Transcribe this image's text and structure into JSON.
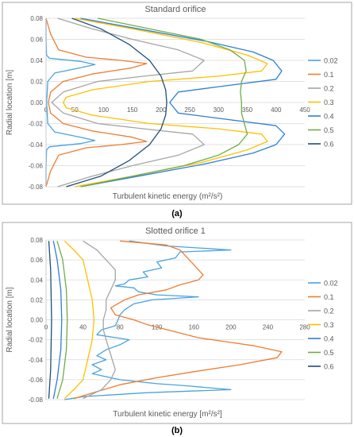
{
  "figure": {
    "panel_a_caption": "(a)",
    "panel_b_caption": "(b)"
  },
  "colors": {
    "0.02": "#4aa3df",
    "0.1": "#ed7d31",
    "0.2": "#a5a5a5",
    "0.3": "#ffc000",
    "0.4": "#2f7fd6",
    "0.5": "#70ad47",
    "0.6": "#1f4e79",
    "axis_text": "#595959",
    "grid": "#d9d9d9",
    "frame": "#a6a6a6"
  },
  "chart_data": [
    {
      "type": "line",
      "title": "Standard orifice",
      "xlabel": "Turbulent kinetic energy (m²/s²)",
      "ylabel": "Radial location [m]",
      "xlim": [
        0,
        450
      ],
      "ylim": [
        -0.08,
        0.08
      ],
      "xticks": [
        "0",
        "50",
        "100",
        "150",
        "200",
        "250",
        "300",
        "350",
        "400",
        "450"
      ],
      "yticks": [
        "0.08",
        "0.06",
        "0.04",
        "0.02",
        "0.00",
        "-0.02",
        "-0.04",
        "-0.06",
        "-0.08"
      ],
      "grid": "horizontal",
      "legend": "right",
      "series": [
        {
          "name": "0.02",
          "points": [
            [
              0,
              0.08
            ],
            [
              0,
              0.06
            ],
            [
              1,
              0.045
            ],
            [
              6,
              0.042
            ],
            [
              25,
              0.041
            ],
            [
              60,
              0.039
            ],
            [
              85,
              0.036
            ],
            [
              60,
              0.033
            ],
            [
              15,
              0.028
            ],
            [
              3,
              0.02
            ],
            [
              1,
              0.0
            ],
            [
              3,
              -0.02
            ],
            [
              15,
              -0.028
            ],
            [
              60,
              -0.033
            ],
            [
              85,
              -0.036
            ],
            [
              60,
              -0.039
            ],
            [
              25,
              -0.041
            ],
            [
              6,
              -0.042
            ],
            [
              1,
              -0.045
            ],
            [
              0,
              -0.06
            ],
            [
              0,
              -0.08
            ]
          ]
        },
        {
          "name": "0.1",
          "points": [
            [
              0,
              0.08
            ],
            [
              8,
              0.065
            ],
            [
              22,
              0.05
            ],
            [
              70,
              0.043
            ],
            [
              130,
              0.04
            ],
            [
              175,
              0.037
            ],
            [
              150,
              0.033
            ],
            [
              80,
              0.027
            ],
            [
              30,
              0.02
            ],
            [
              8,
              0.01
            ],
            [
              4,
              0.0
            ],
            [
              8,
              -0.01
            ],
            [
              30,
              -0.02
            ],
            [
              80,
              -0.027
            ],
            [
              150,
              -0.033
            ],
            [
              175,
              -0.037
            ],
            [
              130,
              -0.04
            ],
            [
              70,
              -0.043
            ],
            [
              22,
              -0.05
            ],
            [
              8,
              -0.065
            ],
            [
              0,
              -0.08
            ]
          ]
        },
        {
          "name": "0.2",
          "points": [
            [
              20,
              0.08
            ],
            [
              80,
              0.07
            ],
            [
              150,
              0.06
            ],
            [
              230,
              0.05
            ],
            [
              275,
              0.04
            ],
            [
              255,
              0.03
            ],
            [
              170,
              0.025
            ],
            [
              90,
              0.02
            ],
            [
              30,
              0.01
            ],
            [
              10,
              0.0
            ],
            [
              30,
              -0.01
            ],
            [
              90,
              -0.02
            ],
            [
              170,
              -0.025
            ],
            [
              255,
              -0.03
            ],
            [
              275,
              -0.04
            ],
            [
              230,
              -0.05
            ],
            [
              150,
              -0.06
            ],
            [
              80,
              -0.07
            ],
            [
              20,
              -0.08
            ]
          ]
        },
        {
          "name": "0.3",
          "points": [
            [
              50,
              0.08
            ],
            [
              150,
              0.07
            ],
            [
              270,
              0.057
            ],
            [
              350,
              0.045
            ],
            [
              385,
              0.037
            ],
            [
              375,
              0.03
            ],
            [
              300,
              0.025
            ],
            [
              180,
              0.02
            ],
            [
              80,
              0.012
            ],
            [
              35,
              0.005
            ],
            [
              30,
              0.0
            ],
            [
              35,
              -0.005
            ],
            [
              80,
              -0.012
            ],
            [
              180,
              -0.02
            ],
            [
              300,
              -0.025
            ],
            [
              375,
              -0.03
            ],
            [
              385,
              -0.037
            ],
            [
              350,
              -0.045
            ],
            [
              270,
              -0.057
            ],
            [
              150,
              -0.07
            ],
            [
              50,
              -0.08
            ]
          ]
        },
        {
          "name": "0.4",
          "points": [
            [
              60,
              0.08
            ],
            [
              160,
              0.07
            ],
            [
              280,
              0.058
            ],
            [
              360,
              0.048
            ],
            [
              395,
              0.04
            ],
            [
              410,
              0.03
            ],
            [
              400,
              0.022
            ],
            [
              300,
              0.015
            ],
            [
              230,
              0.01
            ],
            [
              215,
              0.0
            ],
            [
              230,
              -0.01
            ],
            [
              300,
              -0.015
            ],
            [
              400,
              -0.022
            ],
            [
              415,
              -0.03
            ],
            [
              400,
              -0.04
            ],
            [
              360,
              -0.048
            ],
            [
              280,
              -0.058
            ],
            [
              160,
              -0.07
            ],
            [
              60,
              -0.08
            ]
          ]
        },
        {
          "name": "0.5",
          "points": [
            [
              90,
              0.08
            ],
            [
              180,
              0.07
            ],
            [
              270,
              0.06
            ],
            [
              320,
              0.05
            ],
            [
              345,
              0.04
            ],
            [
              348,
              0.03
            ],
            [
              340,
              0.02
            ],
            [
              338,
              0.01
            ],
            [
              340,
              0.0
            ],
            [
              340,
              -0.01
            ],
            [
              345,
              -0.02
            ],
            [
              350,
              -0.03
            ],
            [
              335,
              -0.04
            ],
            [
              300,
              -0.05
            ],
            [
              240,
              -0.06
            ],
            [
              150,
              -0.07
            ],
            [
              60,
              -0.08
            ]
          ]
        },
        {
          "name": "0.6",
          "points": [
            [
              45,
              0.08
            ],
            [
              95,
              0.07
            ],
            [
              145,
              0.055
            ],
            [
              180,
              0.04
            ],
            [
              200,
              0.025
            ],
            [
              208,
              0.012
            ],
            [
              210,
              0.0
            ],
            [
              208,
              -0.012
            ],
            [
              200,
              -0.025
            ],
            [
              180,
              -0.04
            ],
            [
              145,
              -0.055
            ],
            [
              95,
              -0.07
            ],
            [
              35,
              -0.08
            ]
          ]
        }
      ]
    },
    {
      "type": "line",
      "title": "Slotted orifice 1",
      "xlabel": "Turbulent kinetic energy [m²/s²]",
      "ylabel": "Radial location [m]",
      "xlim": [
        0,
        280
      ],
      "ylim": [
        -0.08,
        0.08
      ],
      "xticks": [
        "0",
        "40",
        "80",
        "120",
        "160",
        "200",
        "240",
        "280"
      ],
      "yticks": [
        "0.08",
        "0.06",
        "0.04",
        "0.02",
        "0.00",
        "-0.02",
        "-0.04",
        "-0.06",
        "-0.08"
      ],
      "grid": "horizontal",
      "legend": "right",
      "series": [
        {
          "name": "0.02",
          "points": [
            [
              90,
              0.079
            ],
            [
              130,
              0.074
            ],
            [
              200,
              0.07
            ],
            [
              145,
              0.068
            ],
            [
              140,
              0.062
            ],
            [
              120,
              0.058
            ],
            [
              125,
              0.052
            ],
            [
              105,
              0.048
            ],
            [
              110,
              0.043
            ],
            [
              90,
              0.04
            ],
            [
              85,
              0.036
            ],
            [
              75,
              0.034
            ],
            [
              95,
              0.032
            ],
            [
              100,
              0.028
            ],
            [
              120,
              0.025
            ],
            [
              165,
              0.023
            ],
            [
              115,
              0.02
            ],
            [
              95,
              0.016
            ],
            [
              85,
              0.01
            ],
            [
              80,
              0.005
            ],
            [
              78,
              0.0
            ],
            [
              75,
              -0.006
            ],
            [
              60,
              -0.01
            ],
            [
              55,
              -0.015
            ],
            [
              90,
              -0.02
            ],
            [
              80,
              -0.025
            ],
            [
              65,
              -0.03
            ],
            [
              55,
              -0.036
            ],
            [
              65,
              -0.04
            ],
            [
              50,
              -0.045
            ],
            [
              60,
              -0.05
            ],
            [
              50,
              -0.054
            ],
            [
              80,
              -0.06
            ],
            [
              120,
              -0.064
            ],
            [
              150,
              -0.066
            ],
            [
              200,
              -0.07
            ],
            [
              110,
              -0.073
            ],
            [
              40,
              -0.077
            ],
            [
              20,
              -0.08
            ]
          ]
        },
        {
          "name": "0.1",
          "points": [
            [
              80,
              0.079
            ],
            [
              130,
              0.075
            ],
            [
              145,
              0.07
            ],
            [
              155,
              0.06
            ],
            [
              165,
              0.05
            ],
            [
              170,
              0.045
            ],
            [
              165,
              0.04
            ],
            [
              145,
              0.035
            ],
            [
              130,
              0.03
            ],
            [
              100,
              0.025
            ],
            [
              85,
              0.02
            ],
            [
              70,
              0.012
            ],
            [
              75,
              0.005
            ],
            [
              95,
              0.0
            ],
            [
              110,
              -0.005
            ],
            [
              140,
              -0.012
            ],
            [
              165,
              -0.018
            ],
            [
              195,
              -0.022
            ],
            [
              225,
              -0.026
            ],
            [
              255,
              -0.032
            ],
            [
              250,
              -0.038
            ],
            [
              210,
              -0.045
            ],
            [
              160,
              -0.052
            ],
            [
              120,
              -0.058
            ],
            [
              80,
              -0.065
            ],
            [
              55,
              -0.072
            ],
            [
              30,
              -0.079
            ]
          ]
        },
        {
          "name": "0.2",
          "points": [
            [
              40,
              0.079
            ],
            [
              55,
              0.07
            ],
            [
              65,
              0.06
            ],
            [
              75,
              0.05
            ],
            [
              75,
              0.04
            ],
            [
              70,
              0.03
            ],
            [
              65,
              0.02
            ],
            [
              65,
              0.01
            ],
            [
              62,
              0.0
            ],
            [
              62,
              -0.01
            ],
            [
              65,
              -0.02
            ],
            [
              70,
              -0.035
            ],
            [
              75,
              -0.05
            ],
            [
              70,
              -0.06
            ],
            [
              60,
              -0.07
            ],
            [
              40,
              -0.079
            ]
          ]
        },
        {
          "name": "0.3",
          "points": [
            [
              20,
              0.079
            ],
            [
              30,
              0.07
            ],
            [
              40,
              0.06
            ],
            [
              45,
              0.04
            ],
            [
              50,
              0.02
            ],
            [
              52,
              0.0
            ],
            [
              50,
              -0.02
            ],
            [
              45,
              -0.04
            ],
            [
              40,
              -0.06
            ],
            [
              30,
              -0.07
            ],
            [
              20,
              -0.079
            ]
          ]
        },
        {
          "name": "0.4",
          "points": [
            [
              8,
              0.079
            ],
            [
              12,
              0.06
            ],
            [
              16,
              0.03
            ],
            [
              17,
              0.0
            ],
            [
              16,
              -0.03
            ],
            [
              12,
              -0.06
            ],
            [
              8,
              -0.079
            ]
          ]
        },
        {
          "name": "0.5",
          "points": [
            [
              12,
              0.079
            ],
            [
              18,
              0.06
            ],
            [
              22,
              0.03
            ],
            [
              23,
              0.0
            ],
            [
              22,
              -0.03
            ],
            [
              18,
              -0.06
            ],
            [
              12,
              -0.079
            ]
          ]
        },
        {
          "name": "0.6",
          "points": [
            [
              3,
              0.079
            ],
            [
              5,
              0.05
            ],
            [
              6,
              0.0
            ],
            [
              5,
              -0.05
            ],
            [
              3,
              -0.079
            ]
          ]
        }
      ]
    }
  ]
}
